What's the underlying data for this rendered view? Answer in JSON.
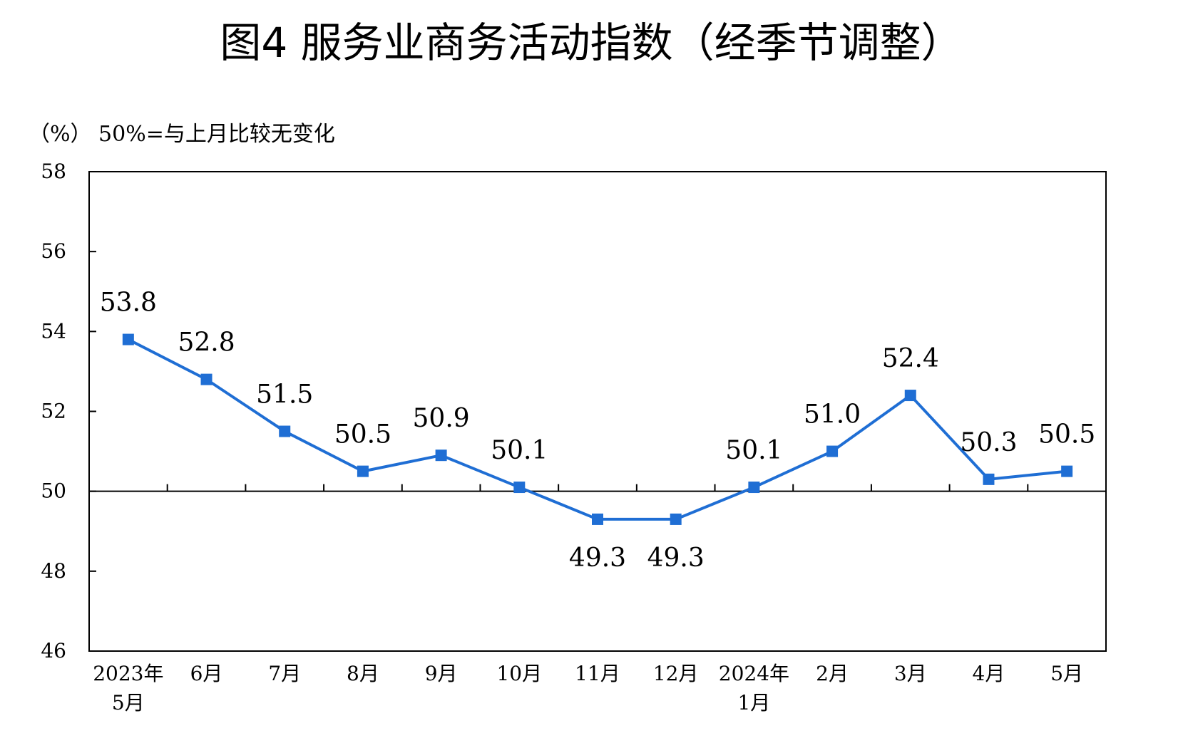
{
  "chart_data": {
    "type": "line",
    "title": "图4  服务业商务活动指数（经季节调整）",
    "unit_note": "（%）  50%=与上月比较无变化",
    "categories": [
      [
        "2023年",
        "5月"
      ],
      [
        "6月"
      ],
      [
        "7月"
      ],
      [
        "8月"
      ],
      [
        "9月"
      ],
      [
        "10月"
      ],
      [
        "11月"
      ],
      [
        "12月"
      ],
      [
        "2024年",
        "1月"
      ],
      [
        "2月"
      ],
      [
        "3月"
      ],
      [
        "4月"
      ],
      [
        "5月"
      ]
    ],
    "series": [
      {
        "values": [
          53.8,
          52.8,
          51.5,
          50.5,
          50.9,
          50.1,
          49.3,
          49.3,
          50.1,
          51.0,
          52.4,
          50.3,
          50.5
        ],
        "labels": [
          "53.8",
          "52.8",
          "51.5",
          "50.5",
          "50.9",
          "50.1",
          "49.3",
          "49.3",
          "50.1",
          "51.0",
          "52.4",
          "50.3",
          "50.5"
        ],
        "label_position": [
          "above",
          "above",
          "above",
          "above",
          "above",
          "above",
          "below",
          "below",
          "above",
          "above",
          "above",
          "above",
          "above"
        ]
      }
    ],
    "ylim": [
      46,
      58
    ],
    "yticks": [
      "46",
      "48",
      "50",
      "52",
      "54",
      "56",
      "58"
    ],
    "reference_line": 50,
    "grid": false,
    "legend": "none",
    "line_color": "#1F6ED4",
    "marker": "square"
  }
}
